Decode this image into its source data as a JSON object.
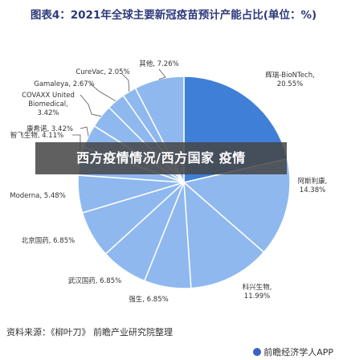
{
  "title": "图表4：2021年全球主要新冠疫苗预计产能占比(单位：%)",
  "banner_text": "西方疫情情况/西方国家 疫情",
  "source": "资料来源：《柳叶刀》 前瞻产业研究院整理",
  "footer_brand": "前瞻经济学人APP",
  "colors": {
    "largest_slice": "#3f7fd8",
    "other_slices": "#8fb8ef",
    "slice_border": "#ffffff",
    "leader_line": "#555555",
    "title_text": "#2d3a7a"
  },
  "chart_data": {
    "type": "pie",
    "title": "图表4：2021年全球主要新冠疫苗预计产能占比(单位：%)",
    "slices": [
      {
        "name": "辉瑞-BioNTech",
        "value": 20.55,
        "label": "辉瑞-BioNTech,\n20.55%"
      },
      {
        "name": "阿斯利康",
        "value": 14.38,
        "label": "阿斯利康,\n14.38%"
      },
      {
        "name": "科兴生物",
        "value": 11.99,
        "label": "科兴生物,\n11.99%"
      },
      {
        "name": "强生",
        "value": 6.85,
        "label": "强生, 6.85%"
      },
      {
        "name": "武汉国药",
        "value": 6.85,
        "label": "武汉国药, 6.85%"
      },
      {
        "name": "北京国药",
        "value": 6.85,
        "label": "北京国药, 6.85%"
      },
      {
        "name": "Moderna",
        "value": 5.48,
        "label": "Moderna, 5.48%"
      },
      {
        "name": "智飞生物",
        "value": 4.11,
        "label": "智飞生物, 4.11%"
      },
      {
        "name": "康希诺",
        "value": 3.42,
        "label": "康希诺, 3.42%"
      },
      {
        "name": "COVAXX United Biomedical",
        "value": 3.42,
        "label": "COVAXX United\nBiomedical,\n3.42%"
      },
      {
        "name": "Gamaleya",
        "value": 2.67,
        "label": "Gamaleya, 2.67%"
      },
      {
        "name": "CureVac",
        "value": 2.05,
        "label": "CureVac, 2.05%"
      },
      {
        "name": "其他",
        "value": 7.26,
        "label": "其他, 7.26%"
      }
    ]
  }
}
